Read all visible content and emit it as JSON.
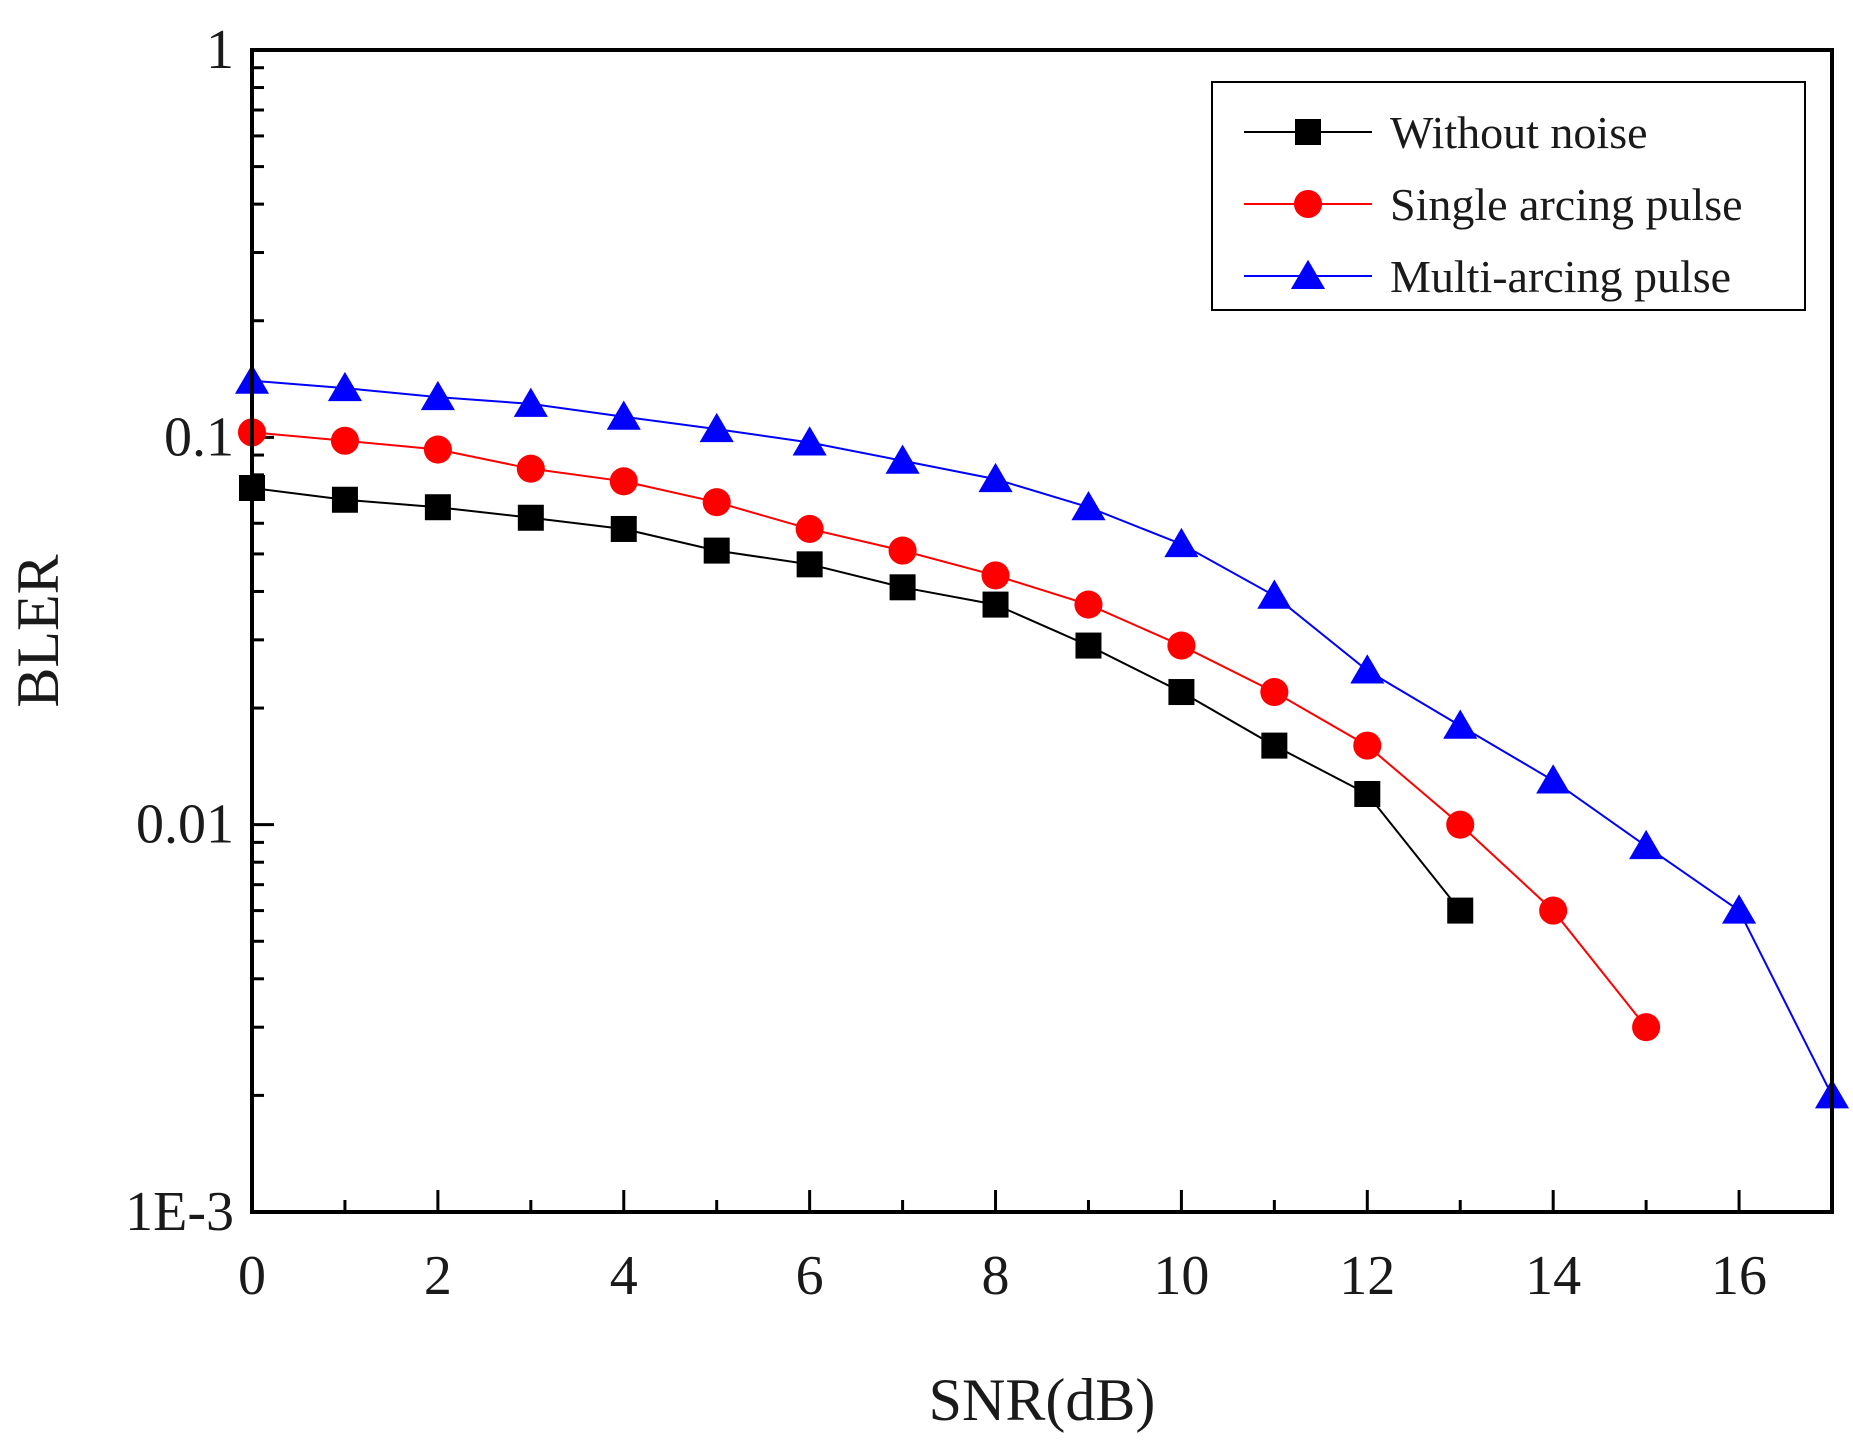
{
  "chart_data": {
    "type": "line",
    "title": "",
    "xlabel": "SNR(dB)",
    "ylabel": "BLER",
    "yscale": "log",
    "xlim": [
      0,
      17
    ],
    "ylim": [
      0.001,
      1
    ],
    "x_ticks": [
      0,
      2,
      4,
      6,
      8,
      10,
      12,
      14,
      16
    ],
    "x_tick_labels": [
      "0",
      "2",
      "4",
      "6",
      "8",
      "10",
      "12",
      "14",
      "16"
    ],
    "y_ticks": [
      0.001,
      0.01,
      0.1,
      1
    ],
    "y_tick_labels": [
      "1E-3",
      "0.01",
      "0.1",
      "1"
    ],
    "grid": false,
    "legend_position": "top-right",
    "series": [
      {
        "name": "Without noise",
        "color": "#000000",
        "marker": "square",
        "x": [
          0,
          1,
          2,
          3,
          4,
          5,
          6,
          7,
          8,
          9,
          10,
          11,
          12,
          13
        ],
        "values": [
          0.074,
          0.069,
          0.066,
          0.062,
          0.058,
          0.051,
          0.047,
          0.041,
          0.037,
          0.029,
          0.022,
          0.016,
          0.012,
          0.006
        ]
      },
      {
        "name": "Single arcing pulse",
        "color": "#ff0000",
        "marker": "circle",
        "x": [
          0,
          1,
          2,
          3,
          4,
          5,
          6,
          7,
          8,
          9,
          10,
          11,
          12,
          13,
          14,
          15
        ],
        "values": [
          0.103,
          0.098,
          0.093,
          0.083,
          0.077,
          0.068,
          0.058,
          0.051,
          0.044,
          0.037,
          0.029,
          0.022,
          0.016,
          0.01,
          0.006,
          0.003
        ]
      },
      {
        "name": "Multi-arcing pulse",
        "color": "#0000ff",
        "marker": "triangle",
        "x": [
          0,
          1,
          2,
          3,
          4,
          5,
          6,
          7,
          8,
          9,
          10,
          11,
          12,
          13,
          14,
          15,
          16,
          17
        ],
        "values": [
          0.14,
          0.134,
          0.127,
          0.122,
          0.113,
          0.105,
          0.097,
          0.087,
          0.078,
          0.066,
          0.053,
          0.039,
          0.025,
          0.018,
          0.013,
          0.0088,
          0.006,
          0.002
        ]
      }
    ]
  }
}
